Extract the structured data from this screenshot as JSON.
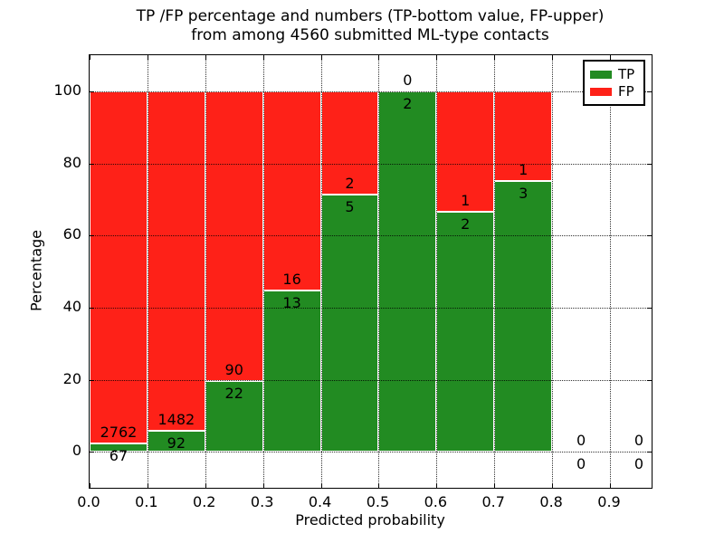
{
  "chart_data": {
    "type": "bar",
    "subtype": "stacked-percentage-histogram",
    "title_lines": [
      "TP /FP percentage and numbers (TP-bottom value, FP-upper)",
      "from among 4560 submitted ML-type contacts"
    ],
    "xlabel": "Predicted probability",
    "ylabel": "Percentage",
    "x_ticks": [
      "0.0",
      "0.1",
      "0.2",
      "0.3",
      "0.4",
      "0.5",
      "0.6",
      "0.7",
      "0.8",
      "0.9"
    ],
    "x_tick_values": [
      0.0,
      0.1,
      0.2,
      0.3,
      0.4,
      0.5,
      0.6,
      0.7,
      0.8,
      0.9
    ],
    "y_ticks": [
      "0",
      "20",
      "40",
      "60",
      "80",
      "100"
    ],
    "y_tick_values": [
      0,
      20,
      40,
      60,
      80,
      100
    ],
    "xlim": [
      0,
      0.972
    ],
    "ylim": [
      -10,
      110
    ],
    "bin_width": 0.1,
    "grid": "dotted",
    "legend_position": "upper right",
    "total_contacts": 4560,
    "bins": [
      {
        "x0": 0.0,
        "tp": 67,
        "fp": 2762
      },
      {
        "x0": 0.1,
        "tp": 92,
        "fp": 1482
      },
      {
        "x0": 0.2,
        "tp": 22,
        "fp": 90
      },
      {
        "x0": 0.3,
        "tp": 13,
        "fp": 16
      },
      {
        "x0": 0.4,
        "tp": 5,
        "fp": 2
      },
      {
        "x0": 0.5,
        "tp": 2,
        "fp": 0
      },
      {
        "x0": 0.6,
        "tp": 2,
        "fp": 1
      },
      {
        "x0": 0.7,
        "tp": 3,
        "fp": 1
      },
      {
        "x0": 0.8,
        "tp": 0,
        "fp": 0
      },
      {
        "x0": 0.9,
        "tp": 0,
        "fp": 0
      }
    ],
    "legend": [
      {
        "label": "TP",
        "color": "#228b22"
      },
      {
        "label": "FP",
        "color": "#fe2118"
      }
    ]
  }
}
